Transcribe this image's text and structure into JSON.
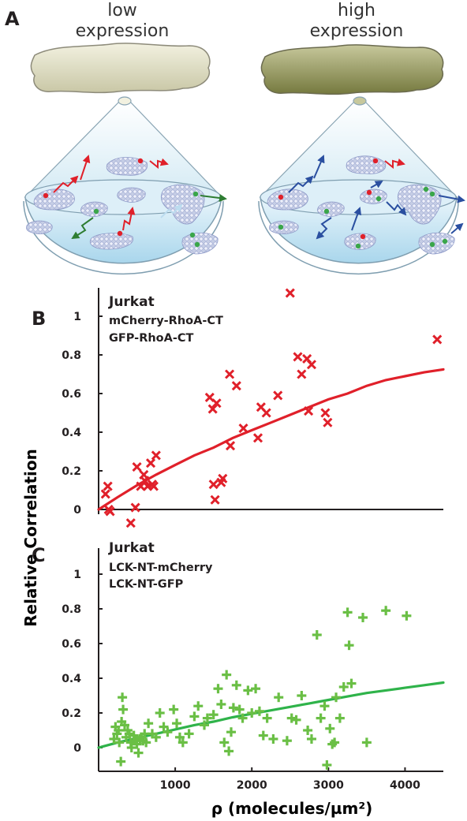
{
  "panel_a": {
    "label": "A",
    "left_title": [
      "low",
      "expression"
    ],
    "right_title": [
      "high",
      "expression"
    ]
  },
  "panel_b": {
    "label": "B",
    "annotation": [
      "Jurkat",
      "mCherry-RhoA-CT",
      "GFP-RhoA-CT"
    ]
  },
  "panel_c": {
    "label": "C",
    "annotation": [
      "Jurkat",
      "LCK-NT-mCherry",
      "LCK-NT-GFP"
    ]
  },
  "shared_axes": {
    "ylabel": "Relative Correlation",
    "xlabel": "ρ (molecules/µm²)"
  },
  "colors": {
    "red": "#e0202a",
    "green": "#6abf45",
    "green_line": "#2fb34a",
    "blue_arrow": "#2a4fa0",
    "dark_green_arrow": "#2e7d32"
  },
  "chart_data": [
    {
      "type": "scatter",
      "panel": "B",
      "marker": "x",
      "xlim": [
        0,
        4500
      ],
      "ylim": [
        -0.1,
        1.15
      ],
      "yticks": [
        0,
        0.2,
        0.4,
        0.6,
        0.8,
        1
      ],
      "ytick_labels": [
        "0",
        "0.2",
        "0.4",
        "0.6",
        "0.8",
        "1"
      ],
      "xticks": [],
      "series": [
        {
          "marker": "x",
          "points": [
            [
              90,
              0.08
            ],
            [
              120,
              0.12
            ],
            [
              130,
              0.0
            ],
            [
              150,
              -0.01
            ],
            [
              420,
              -0.07
            ],
            [
              480,
              0.01
            ],
            [
              500,
              0.22
            ],
            [
              550,
              0.12
            ],
            [
              590,
              0.18
            ],
            [
              600,
              0.15
            ],
            [
              640,
              0.12
            ],
            [
              680,
              0.24
            ],
            [
              700,
              0.13
            ],
            [
              720,
              0.12
            ],
            [
              750,
              0.28
            ],
            [
              1450,
              0.58
            ],
            [
              1490,
              0.52
            ],
            [
              1500,
              0.13
            ],
            [
              1520,
              0.05
            ],
            [
              1540,
              0.55
            ],
            [
              1600,
              0.14
            ],
            [
              1620,
              0.16
            ],
            [
              1710,
              0.7
            ],
            [
              1720,
              0.33
            ],
            [
              1800,
              0.64
            ],
            [
              1890,
              0.42
            ],
            [
              2080,
              0.37
            ],
            [
              2120,
              0.53
            ],
            [
              2190,
              0.5
            ],
            [
              2340,
              0.59
            ],
            [
              2500,
              1.12
            ],
            [
              2600,
              0.79
            ],
            [
              2650,
              0.7
            ],
            [
              2720,
              0.78
            ],
            [
              2740,
              0.51
            ],
            [
              2780,
              0.75
            ],
            [
              2960,
              0.5
            ],
            [
              2990,
              0.45
            ],
            [
              4420,
              0.88
            ]
          ]
        }
      ],
      "fit_line": [
        [
          0,
          0.0
        ],
        [
          250,
          0.064
        ],
        [
          500,
          0.125
        ],
        [
          750,
          0.18
        ],
        [
          1000,
          0.23
        ],
        [
          1250,
          0.28
        ],
        [
          1500,
          0.32
        ],
        [
          1750,
          0.37
        ],
        [
          2000,
          0.41
        ],
        [
          2250,
          0.45
        ],
        [
          2500,
          0.49
        ],
        [
          2750,
          0.53
        ],
        [
          3000,
          0.57
        ],
        [
          3250,
          0.6
        ],
        [
          3500,
          0.64
        ],
        [
          3750,
          0.67
        ],
        [
          4000,
          0.69
        ],
        [
          4250,
          0.71
        ],
        [
          4500,
          0.725
        ]
      ]
    },
    {
      "type": "scatter",
      "panel": "C",
      "marker": "+",
      "xlim": [
        0,
        4500
      ],
      "ylim": [
        -0.12,
        1.07
      ],
      "yticks": [
        0,
        0.2,
        0.4,
        0.6,
        0.8,
        1
      ],
      "ytick_labels": [
        "0",
        "0.2",
        "0.4",
        "0.6",
        "0.8",
        "1"
      ],
      "xticks": [
        1000,
        2000,
        3000,
        4000
      ],
      "xtick_labels": [
        "1000",
        "2000",
        "3000",
        "4000"
      ],
      "series": [
        {
          "marker": "+",
          "points": [
            [
              200,
              0.05
            ],
            [
              220,
              0.12
            ],
            [
              240,
              0.08
            ],
            [
              260,
              0.1
            ],
            [
              270,
              0.03
            ],
            [
              290,
              -0.08
            ],
            [
              300,
              0.15
            ],
            [
              310,
              0.29
            ],
            [
              320,
              0.22
            ],
            [
              340,
              0.13
            ],
            [
              360,
              0.06
            ],
            [
              380,
              0.1
            ],
            [
              400,
              0.08
            ],
            [
              420,
              0.03
            ],
            [
              430,
              0.0
            ],
            [
              460,
              0.07
            ],
            [
              480,
              0.04
            ],
            [
              500,
              0.02
            ],
            [
              520,
              -0.03
            ],
            [
              540,
              0.05
            ],
            [
              560,
              0.06
            ],
            [
              580,
              0.04
            ],
            [
              600,
              0.08
            ],
            [
              620,
              0.03
            ],
            [
              650,
              0.14
            ],
            [
              700,
              0.08
            ],
            [
              750,
              0.06
            ],
            [
              800,
              0.2
            ],
            [
              850,
              0.12
            ],
            [
              900,
              0.09
            ],
            [
              980,
              0.22
            ],
            [
              1020,
              0.14
            ],
            [
              1060,
              0.06
            ],
            [
              1100,
              0.03
            ],
            [
              1180,
              0.08
            ],
            [
              1250,
              0.18
            ],
            [
              1300,
              0.24
            ],
            [
              1380,
              0.13
            ],
            [
              1420,
              0.17
            ],
            [
              1500,
              0.19
            ],
            [
              1560,
              0.34
            ],
            [
              1600,
              0.25
            ],
            [
              1640,
              0.03
            ],
            [
              1670,
              0.42
            ],
            [
              1700,
              -0.02
            ],
            [
              1730,
              0.09
            ],
            [
              1760,
              0.23
            ],
            [
              1800,
              0.36
            ],
            [
              1840,
              0.22
            ],
            [
              1880,
              0.17
            ],
            [
              1950,
              0.33
            ],
            [
              2000,
              0.2
            ],
            [
              2050,
              0.34
            ],
            [
              2100,
              0.21
            ],
            [
              2150,
              0.07
            ],
            [
              2200,
              0.17
            ],
            [
              2280,
              0.05
            ],
            [
              2350,
              0.29
            ],
            [
              2460,
              0.04
            ],
            [
              2520,
              0.17
            ],
            [
              2580,
              0.16
            ],
            [
              2650,
              0.3
            ],
            [
              2730,
              0.1
            ],
            [
              2780,
              0.05
            ],
            [
              2850,
              0.65
            ],
            [
              2900,
              0.17
            ],
            [
              2950,
              0.24
            ],
            [
              2980,
              -0.1
            ],
            [
              3020,
              0.11
            ],
            [
              3050,
              0.02
            ],
            [
              3080,
              0.03
            ],
            [
              3100,
              0.29
            ],
            [
              3150,
              0.17
            ],
            [
              3200,
              0.35
            ],
            [
              3250,
              0.78
            ],
            [
              3270,
              0.59
            ],
            [
              3300,
              0.37
            ],
            [
              3450,
              0.75
            ],
            [
              3500,
              0.03
            ],
            [
              3750,
              0.79
            ],
            [
              4020,
              0.76
            ]
          ]
        }
      ],
      "fit_line": [
        [
          0,
          0.0
        ],
        [
          250,
          0.03
        ],
        [
          500,
          0.055
        ],
        [
          750,
          0.08
        ],
        [
          1000,
          0.105
        ],
        [
          1250,
          0.13
        ],
        [
          1500,
          0.15
        ],
        [
          1750,
          0.175
        ],
        [
          2000,
          0.195
        ],
        [
          2250,
          0.215
        ],
        [
          2500,
          0.235
        ],
        [
          2750,
          0.255
        ],
        [
          3000,
          0.275
        ],
        [
          3250,
          0.295
        ],
        [
          3500,
          0.315
        ],
        [
          3750,
          0.33
        ],
        [
          4000,
          0.345
        ],
        [
          4250,
          0.36
        ],
        [
          4500,
          0.375
        ]
      ]
    }
  ]
}
